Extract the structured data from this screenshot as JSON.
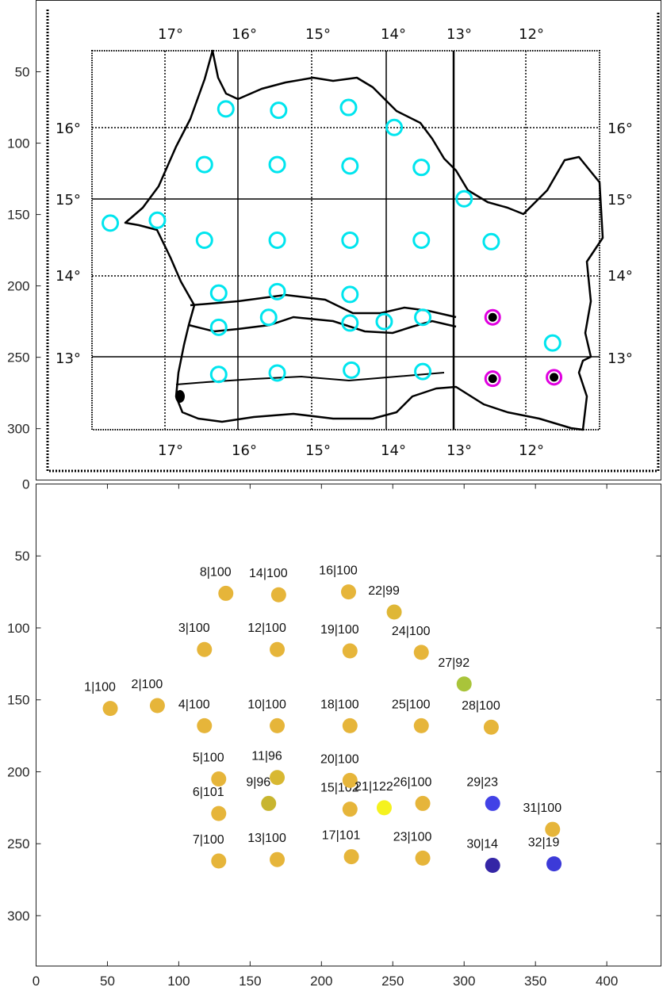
{
  "chart_data": [
    {
      "type": "scatter",
      "title": "",
      "xlabel": "",
      "ylabel": "",
      "ylim": [
        0,
        330
      ],
      "y_ticks": [
        50,
        100,
        150,
        200,
        250,
        300
      ],
      "y_tick_labels": [
        "50",
        "100",
        "150",
        "200",
        "250",
        "300"
      ],
      "map_longitude_labels": [
        "17°",
        "16°",
        "15°",
        "14°",
        "13°",
        "12°"
      ],
      "map_latitude_labels": [
        "16°",
        "15°",
        "14°",
        "13°"
      ],
      "markers": [
        {
          "x": 52,
          "y": 156,
          "style": "ring",
          "color": "#00e5ee"
        },
        {
          "x": 85,
          "y": 154,
          "style": "ring",
          "color": "#00e5ee"
        },
        {
          "x": 118,
          "y": 115,
          "style": "ring",
          "color": "#00e5ee"
        },
        {
          "x": 118,
          "y": 168,
          "style": "ring",
          "color": "#00e5ee"
        },
        {
          "x": 128,
          "y": 205,
          "style": "ring",
          "color": "#00e5ee"
        },
        {
          "x": 128,
          "y": 229,
          "style": "ring",
          "color": "#00e5ee"
        },
        {
          "x": 128,
          "y": 262,
          "style": "ring",
          "color": "#00e5ee"
        },
        {
          "x": 133,
          "y": 76,
          "style": "ring",
          "color": "#00e5ee"
        },
        {
          "x": 163,
          "y": 222,
          "style": "ring",
          "color": "#00e5ee"
        },
        {
          "x": 169,
          "y": 168,
          "style": "ring",
          "color": "#00e5ee"
        },
        {
          "x": 169,
          "y": 204,
          "style": "ring",
          "color": "#00e5ee"
        },
        {
          "x": 169,
          "y": 115,
          "style": "ring",
          "color": "#00e5ee"
        },
        {
          "x": 169,
          "y": 261,
          "style": "ring",
          "color": "#00e5ee"
        },
        {
          "x": 170,
          "y": 77,
          "style": "ring",
          "color": "#00e5ee"
        },
        {
          "x": 220,
          "y": 226,
          "style": "ring",
          "color": "#00e5ee"
        },
        {
          "x": 219,
          "y": 75,
          "style": "ring",
          "color": "#00e5ee"
        },
        {
          "x": 221,
          "y": 259,
          "style": "ring",
          "color": "#00e5ee"
        },
        {
          "x": 220,
          "y": 168,
          "style": "ring",
          "color": "#00e5ee"
        },
        {
          "x": 220,
          "y": 116,
          "style": "ring",
          "color": "#00e5ee"
        },
        {
          "x": 220,
          "y": 206,
          "style": "ring",
          "color": "#00e5ee"
        },
        {
          "x": 244,
          "y": 225,
          "style": "ring",
          "color": "#00e5ee"
        },
        {
          "x": 251,
          "y": 89,
          "style": "ring",
          "color": "#00e5ee"
        },
        {
          "x": 271,
          "y": 260,
          "style": "ring",
          "color": "#00e5ee"
        },
        {
          "x": 270,
          "y": 117,
          "style": "ring",
          "color": "#00e5ee"
        },
        {
          "x": 270,
          "y": 168,
          "style": "ring",
          "color": "#00e5ee"
        },
        {
          "x": 271,
          "y": 222,
          "style": "ring",
          "color": "#00e5ee"
        },
        {
          "x": 300,
          "y": 139,
          "style": "ring",
          "color": "#00e5ee"
        },
        {
          "x": 319,
          "y": 169,
          "style": "ring",
          "color": "#00e5ee"
        },
        {
          "x": 320,
          "y": 222,
          "style": "filled-ring",
          "color": "#000000",
          "ring_color": "#e000e0"
        },
        {
          "x": 320,
          "y": 265,
          "style": "filled-ring",
          "color": "#000000",
          "ring_color": "#e000e0"
        },
        {
          "x": 362,
          "y": 240,
          "style": "ring",
          "color": "#00e5ee"
        },
        {
          "x": 363,
          "y": 264,
          "style": "filled-ring",
          "color": "#000000",
          "ring_color": "#e000e0"
        }
      ]
    },
    {
      "type": "scatter",
      "title": "",
      "xlabel": "",
      "ylabel": "",
      "xlim": [
        0,
        438
      ],
      "ylim": [
        0,
        335
      ],
      "x_ticks": [
        0,
        50,
        100,
        150,
        200,
        250,
        300,
        350,
        400
      ],
      "x_tick_labels": [
        "0",
        "50",
        "100",
        "150",
        "200",
        "250",
        "300",
        "350",
        "400"
      ],
      "y_ticks": [
        0,
        50,
        100,
        150,
        200,
        250,
        300
      ],
      "y_tick_labels": [
        "0",
        "50",
        "100",
        "150",
        "200",
        "250",
        "300"
      ],
      "points": [
        {
          "label": "1|100",
          "x": 52,
          "y": 156,
          "color": "#e6b53a"
        },
        {
          "label": "2|100",
          "x": 85,
          "y": 154,
          "color": "#e6b53a"
        },
        {
          "label": "3|100",
          "x": 118,
          "y": 115,
          "color": "#e6b53a"
        },
        {
          "label": "4|100",
          "x": 118,
          "y": 168,
          "color": "#e6b53a"
        },
        {
          "label": "5|100",
          "x": 128,
          "y": 205,
          "color": "#e6b53a"
        },
        {
          "label": "6|101",
          "x": 128,
          "y": 229,
          "color": "#e6b53a"
        },
        {
          "label": "7|100",
          "x": 128,
          "y": 262,
          "color": "#e6b53a"
        },
        {
          "label": "8|100",
          "x": 133,
          "y": 76,
          "color": "#e6b53a"
        },
        {
          "label": "9|96",
          "x": 163,
          "y": 222,
          "color": "#c8b52f"
        },
        {
          "label": "10|100",
          "x": 169,
          "y": 168,
          "color": "#e6b53a"
        },
        {
          "label": "11|96",
          "x": 169,
          "y": 204,
          "color": "#d8b832"
        },
        {
          "label": "12|100",
          "x": 169,
          "y": 115,
          "color": "#e6b53a"
        },
        {
          "label": "13|100",
          "x": 169,
          "y": 261,
          "color": "#e6b53a"
        },
        {
          "label": "14|100",
          "x": 170,
          "y": 77,
          "color": "#e6b53a"
        },
        {
          "label": "15|102",
          "x": 220,
          "y": 226,
          "color": "#e6b53a"
        },
        {
          "label": "16|100",
          "x": 219,
          "y": 75,
          "color": "#e6b53a"
        },
        {
          "label": "17|101",
          "x": 221,
          "y": 259,
          "color": "#e6b53a"
        },
        {
          "label": "18|100",
          "x": 220,
          "y": 168,
          "color": "#e6b53a"
        },
        {
          "label": "19|100",
          "x": 220,
          "y": 116,
          "color": "#e6b53a"
        },
        {
          "label": "20|100",
          "x": 220,
          "y": 206,
          "color": "#e6b53a"
        },
        {
          "label": "21|122",
          "x": 244,
          "y": 225,
          "color": "#f5f21e"
        },
        {
          "label": "22|99",
          "x": 251,
          "y": 89,
          "color": "#dfb736"
        },
        {
          "label": "23|100",
          "x": 271,
          "y": 260,
          "color": "#e6b53a"
        },
        {
          "label": "24|100",
          "x": 270,
          "y": 117,
          "color": "#e6b53a"
        },
        {
          "label": "25|100",
          "x": 270,
          "y": 168,
          "color": "#e6b53a"
        },
        {
          "label": "26|100",
          "x": 271,
          "y": 222,
          "color": "#e6b53a"
        },
        {
          "label": "27|92",
          "x": 300,
          "y": 139,
          "color": "#a9c43a"
        },
        {
          "label": "28|100",
          "x": 319,
          "y": 169,
          "color": "#e6b53a"
        },
        {
          "label": "29|23",
          "x": 320,
          "y": 222,
          "color": "#4242e6"
        },
        {
          "label": "30|14",
          "x": 320,
          "y": 265,
          "color": "#3526a6"
        },
        {
          "label": "31|100",
          "x": 362,
          "y": 240,
          "color": "#e6b53a"
        },
        {
          "label": "32|19",
          "x": 363,
          "y": 264,
          "color": "#3c3ad8"
        }
      ]
    }
  ]
}
